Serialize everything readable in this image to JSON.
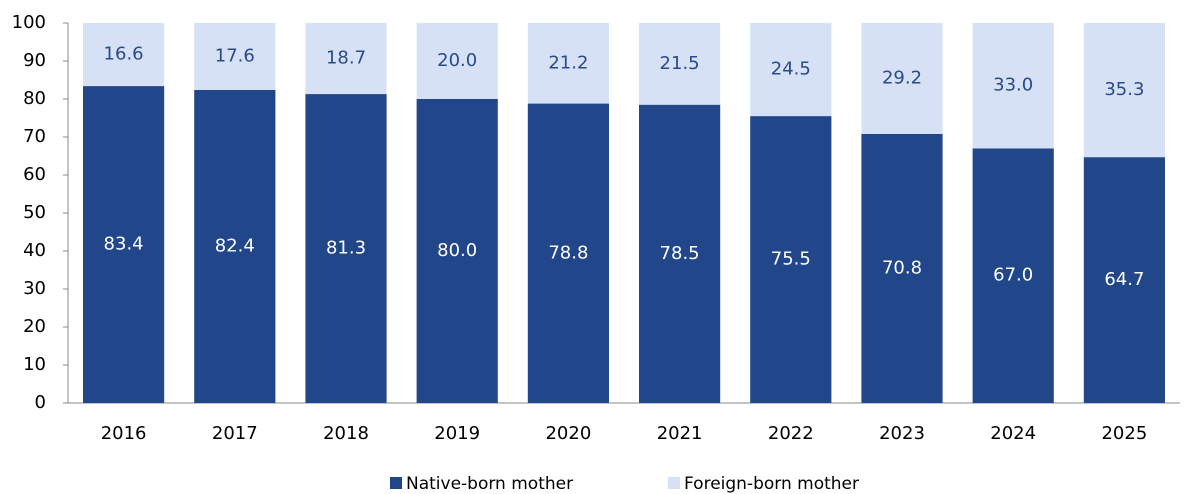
{
  "chart_data": {
    "type": "stacked_bar",
    "categories": [
      "2016",
      "2017",
      "2018",
      "2019",
      "2020",
      "2021",
      "2022",
      "2023",
      "2024",
      "2025"
    ],
    "series": [
      {
        "name": "Native-born mother",
        "color": "#21468a",
        "values": [
          83.4,
          82.4,
          81.3,
          80.0,
          78.8,
          78.5,
          75.5,
          70.8,
          67.0,
          64.7
        ],
        "value_labels": [
          "83.4",
          "82.4",
          "81.3",
          "80.0",
          "78.8",
          "78.5",
          "75.5",
          "70.8",
          "67.0",
          "64.7"
        ]
      },
      {
        "name": "Foreign-born mother",
        "color": "#d6e1f5",
        "values": [
          16.6,
          17.6,
          18.7,
          20.0,
          21.2,
          21.5,
          24.5,
          29.2,
          33.0,
          35.3
        ],
        "value_labels": [
          "16.6",
          "17.6",
          "18.7",
          "20.0",
          "21.2",
          "21.5",
          "24.5",
          "29.2",
          "33.0",
          "35.3"
        ]
      }
    ],
    "ylim": [
      0,
      100
    ],
    "yticks": [
      0,
      10,
      20,
      30,
      40,
      50,
      60,
      70,
      80,
      90,
      100
    ],
    "grid": false,
    "legend": "bottom"
  }
}
